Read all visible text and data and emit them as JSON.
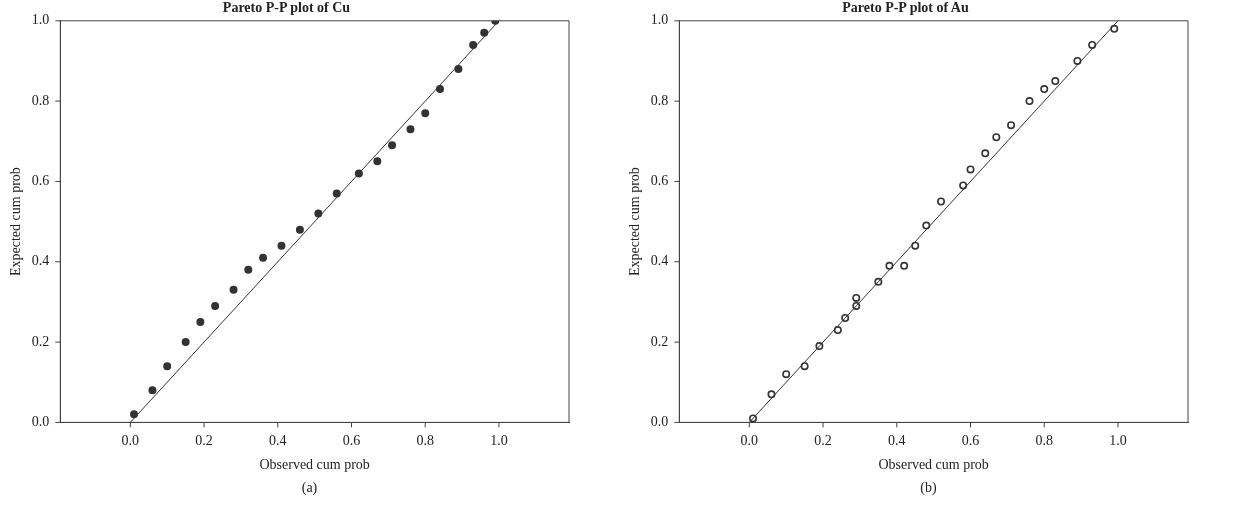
{
  "chart_data": [
    {
      "type": "scatter",
      "title": "Pareto P-P plot of Cu",
      "xlabel": "Observed cum prob",
      "ylabel": "Expected cum prob",
      "annotations": [
        "(a)"
      ],
      "xlim": [
        -0.19,
        1.19
      ],
      "ylim": [
        0,
        1
      ],
      "xticks": [
        {
          "value": 0,
          "label": "0.0"
        },
        {
          "value": 0.2,
          "label": "0.2"
        },
        {
          "value": 0.4,
          "label": "0.4"
        },
        {
          "value": 0.6,
          "label": "0.6"
        },
        {
          "value": 0.8,
          "label": "0.8"
        },
        {
          "value": 1,
          "label": "1.0"
        }
      ],
      "yticks": [
        {
          "value": 0,
          "label": "0.0"
        },
        {
          "value": 0.2,
          "label": "0.2"
        },
        {
          "value": 0.4,
          "label": "0.4"
        },
        {
          "value": 0.6,
          "label": "0.6"
        },
        {
          "value": 0.8,
          "label": "0.8"
        },
        {
          "value": 1,
          "label": "1.0"
        }
      ],
      "grid": false,
      "legend": false,
      "marker": "circle",
      "series": [
        {
          "color": "#333333",
          "x": [
            0.01,
            0.06,
            0.1,
            0.15,
            0.19,
            0.23,
            0.28,
            0.32,
            0.36,
            0.41,
            0.46,
            0.51,
            0.56,
            0.62,
            0.67,
            0.71,
            0.76,
            0.8,
            0.84,
            0.89,
            0.93,
            0.96,
            0.99
          ],
          "values": [
            0.02,
            0.08,
            0.14,
            0.2,
            0.25,
            0.29,
            0.33,
            0.38,
            0.41,
            0.44,
            0.48,
            0.52,
            0.57,
            0.62,
            0.65,
            0.69,
            0.73,
            0.77,
            0.83,
            0.88,
            0.94,
            0.97,
            1.0
          ]
        },
        {
          "type": "line",
          "color": "#333333",
          "marker": "none",
          "x": [
            0,
            1
          ],
          "values": [
            0,
            1
          ]
        }
      ]
    },
    {
      "type": "scatter",
      "title": "Pareto P-P plot of Au",
      "xlabel": "Observed cum prob",
      "ylabel": "Expected cum prob",
      "annotations": [
        "(b)"
      ],
      "xlim": [
        -0.19,
        1.19
      ],
      "ylim": [
        0,
        1
      ],
      "xticks": [
        {
          "value": 0,
          "label": "0.0"
        },
        {
          "value": 0.2,
          "label": "0.2"
        },
        {
          "value": 0.4,
          "label": "0.4"
        },
        {
          "value": 0.6,
          "label": "0.6"
        },
        {
          "value": 0.8,
          "label": "0.8"
        },
        {
          "value": 1,
          "label": "1.0"
        }
      ],
      "yticks": [
        {
          "value": 0,
          "label": "0.0"
        },
        {
          "value": 0.2,
          "label": "0.2"
        },
        {
          "value": 0.4,
          "label": "0.4"
        },
        {
          "value": 0.6,
          "label": "0.6"
        },
        {
          "value": 0.8,
          "label": "0.8"
        },
        {
          "value": 1,
          "label": "1.0"
        }
      ],
      "grid": false,
      "legend": false,
      "marker": "circle",
      "series": [
        {
          "color": "#333333",
          "x": [
            0.01,
            0.06,
            0.1,
            0.15,
            0.19,
            0.24,
            0.26,
            0.29,
            0.29,
            0.35,
            0.38,
            0.42,
            0.45,
            0.48,
            0.52,
            0.58,
            0.6,
            0.64,
            0.67,
            0.71,
            0.76,
            0.8,
            0.83,
            0.89,
            0.93,
            0.99
          ],
          "values": [
            0.01,
            0.07,
            0.12,
            0.14,
            0.19,
            0.23,
            0.26,
            0.29,
            0.31,
            0.35,
            0.39,
            0.39,
            0.44,
            0.49,
            0.55,
            0.59,
            0.63,
            0.67,
            0.71,
            0.74,
            0.8,
            0.83,
            0.85,
            0.9,
            0.94,
            0.98
          ]
        },
        {
          "type": "line",
          "color": "#333333",
          "marker": "none",
          "x": [
            0,
            1
          ],
          "values": [
            0,
            1
          ]
        }
      ]
    }
  ]
}
